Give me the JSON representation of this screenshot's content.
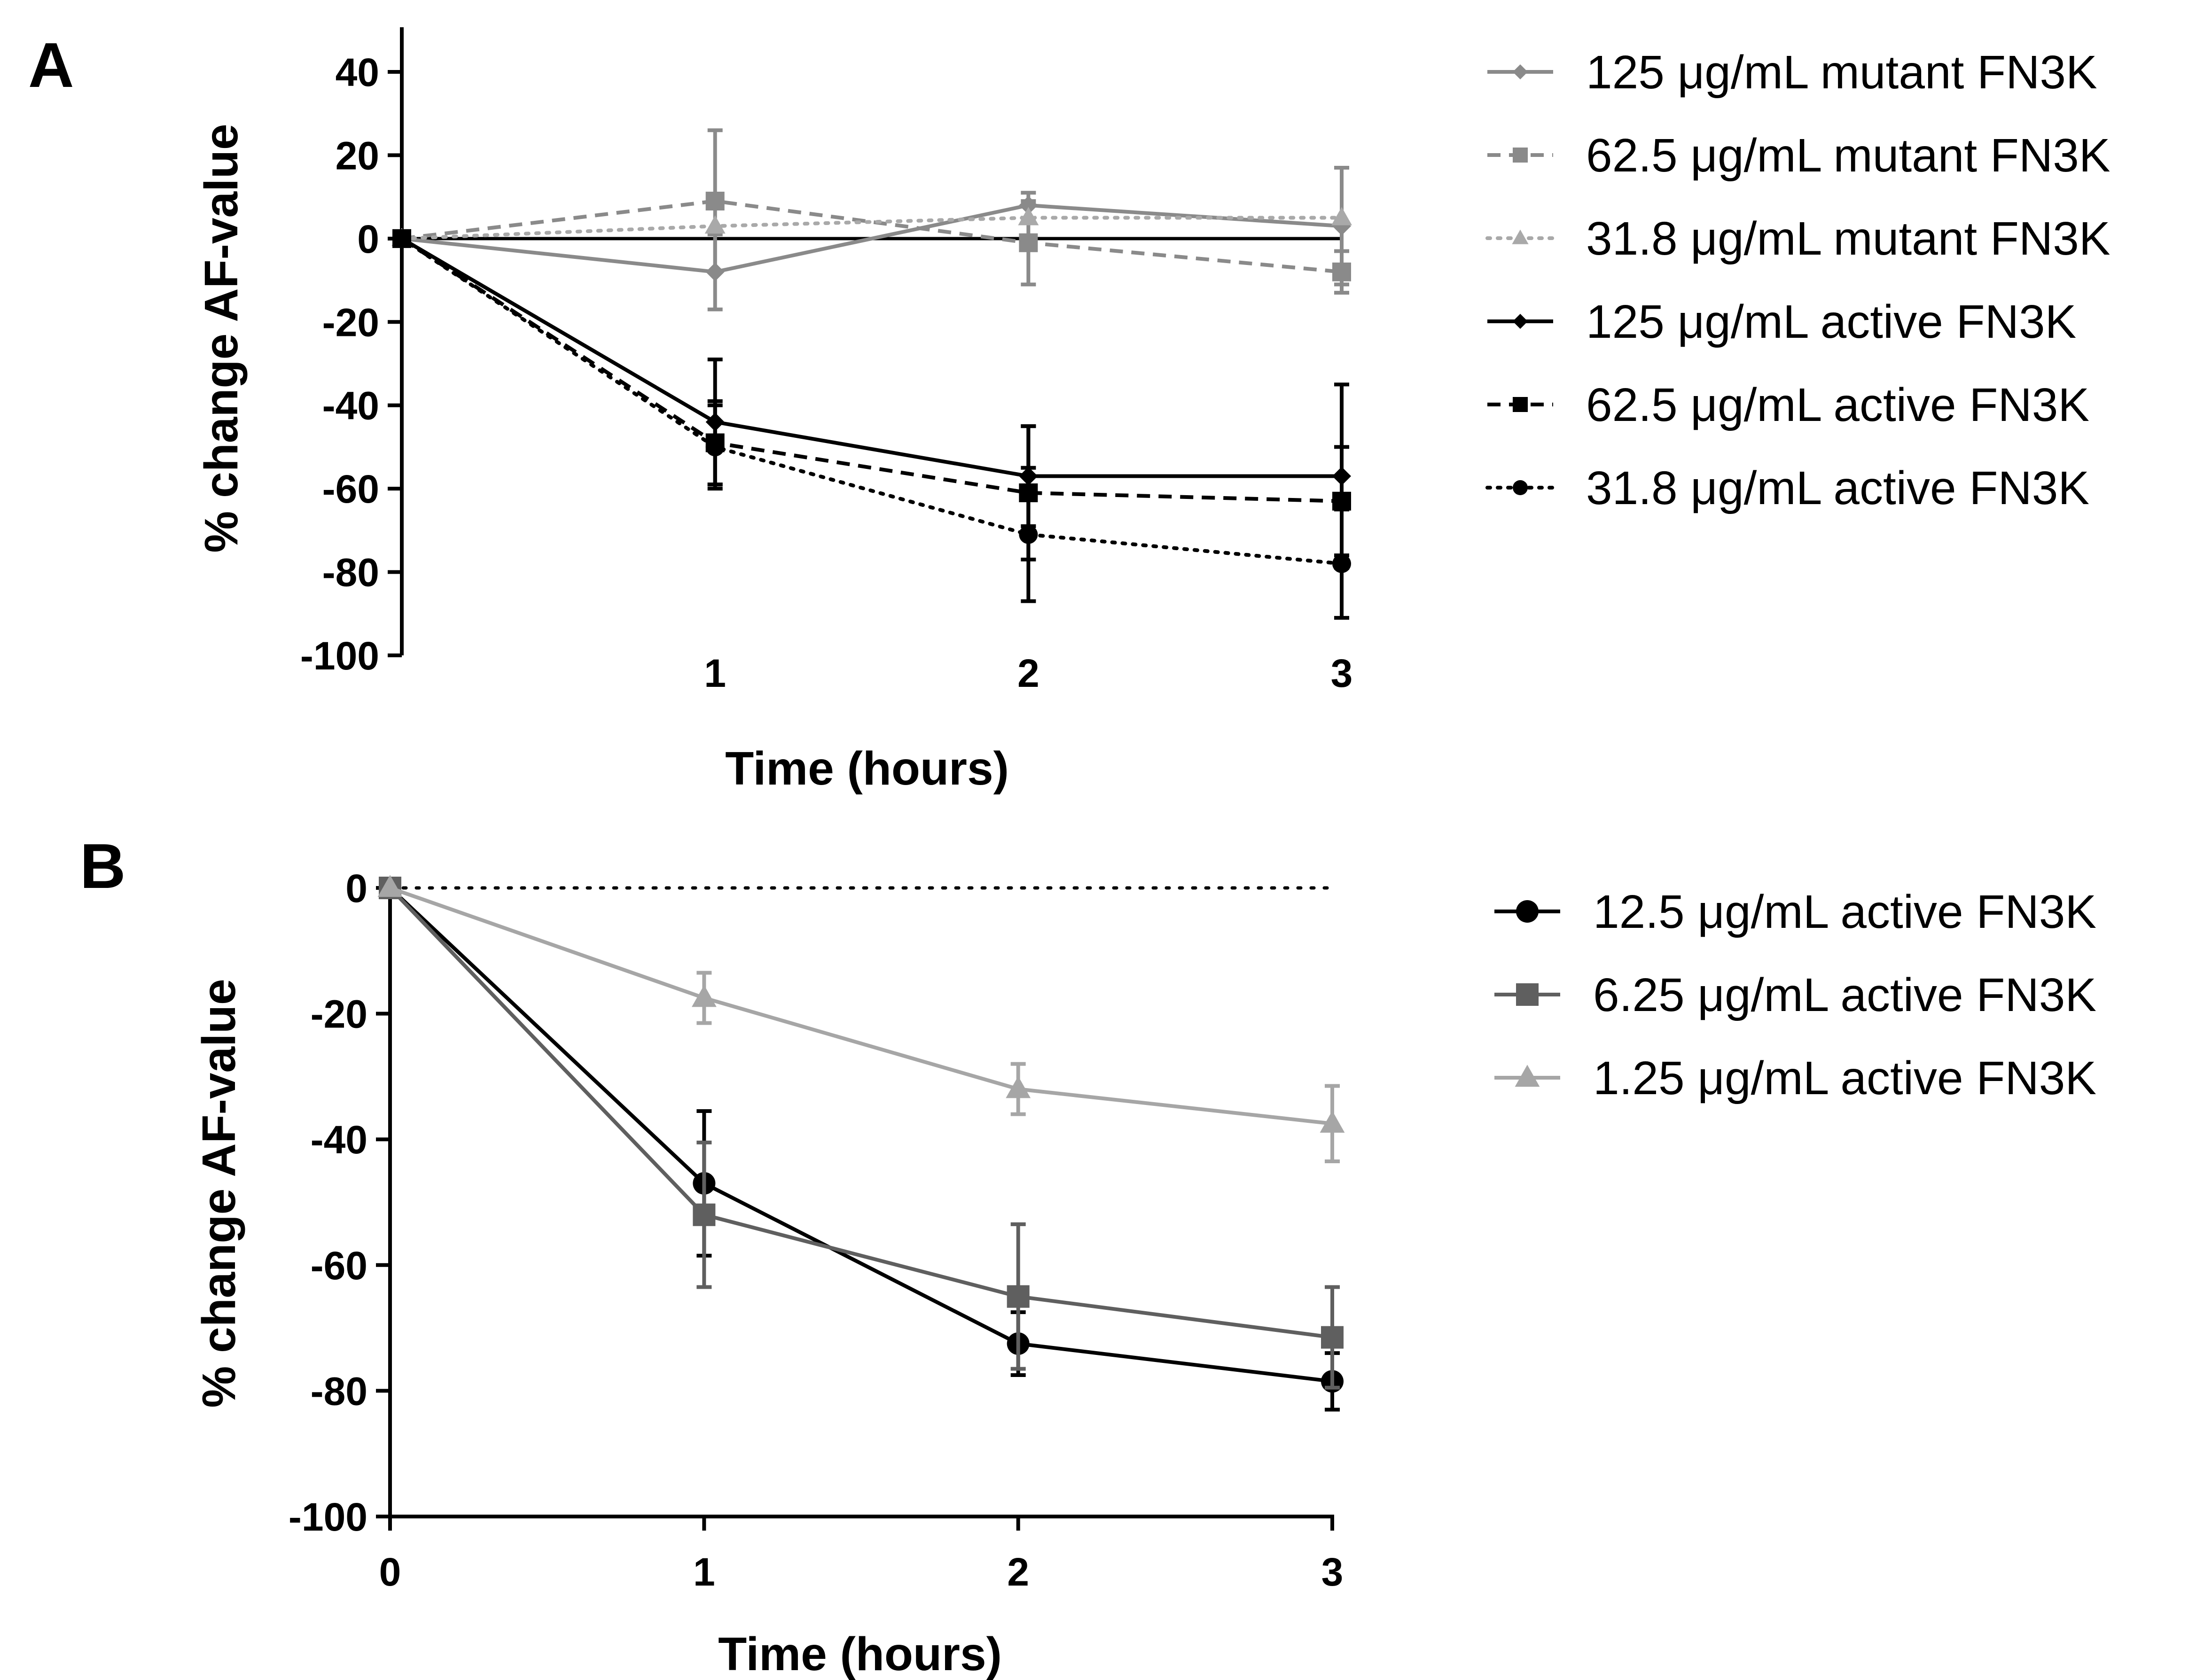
{
  "figure": {
    "panels": [
      "A",
      "B"
    ]
  },
  "chart_data": [
    {
      "panel": "A",
      "type": "line",
      "xlabel": "Time (hours)",
      "ylabel": "% change AF-value",
      "xlim": [
        0,
        3
      ],
      "ylim": [
        -100,
        40
      ],
      "x_ticks": [
        1,
        2,
        3
      ],
      "y_ticks": [
        40,
        20,
        0,
        -20,
        -40,
        -60,
        -80,
        -100
      ],
      "grid": false,
      "legend_position": "right",
      "reference_line": {
        "y": 0,
        "style": "solid"
      },
      "series": [
        {
          "name": "125 μg/mL mutant FN3K",
          "color": "#8a8a8a",
          "dash": "solid",
          "marker": "diamond",
          "x": [
            0,
            1,
            2,
            3
          ],
          "y": [
            0,
            -8,
            8,
            3
          ],
          "err": [
            0,
            9,
            3,
            14
          ]
        },
        {
          "name": "62.5 μg/mL mutant FN3K",
          "color": "#8a8a8a",
          "dash": "dashed",
          "marker": "square",
          "x": [
            0,
            1,
            2,
            3
          ],
          "y": [
            0,
            9,
            -1,
            -8
          ],
          "err": [
            0,
            17,
            10,
            5
          ]
        },
        {
          "name": "31.8 μg/mL mutant FN3K",
          "color": "#a9a9a9",
          "dash": "dotted",
          "marker": "triangle",
          "x": [
            0,
            1,
            2,
            3
          ],
          "y": [
            0,
            3,
            5,
            5
          ],
          "err": [
            0,
            0,
            0,
            0
          ]
        },
        {
          "name": "125 μg/mL active FN3K",
          "color": "#000000",
          "dash": "solid",
          "marker": "diamond",
          "x": [
            0,
            1,
            2,
            3
          ],
          "y": [
            0,
            -44,
            -57,
            -57
          ],
          "err": [
            0,
            15,
            12,
            22
          ]
        },
        {
          "name": "62.5 μg/mL active FN3K",
          "color": "#000000",
          "dash": "dashed",
          "marker": "square",
          "x": [
            0,
            1,
            2,
            3
          ],
          "y": [
            0,
            -49,
            -61,
            -63
          ],
          "err": [
            0,
            10,
            16,
            13
          ]
        },
        {
          "name": "31.8 μg/mL active FN3K",
          "color": "#000000",
          "dash": "dotted",
          "marker": "circle",
          "x": [
            0,
            1,
            2,
            3
          ],
          "y": [
            0,
            -50,
            -71,
            -78
          ],
          "err": [
            0,
            10,
            16,
            13
          ]
        }
      ]
    },
    {
      "panel": "B",
      "type": "line",
      "xlabel": "Time (hours)",
      "ylabel": "% change AF-value",
      "xlim": [
        0,
        3
      ],
      "ylim": [
        -100,
        0
      ],
      "x_ticks": [
        0,
        1,
        2,
        3
      ],
      "y_ticks": [
        0,
        -20,
        -40,
        -60,
        -80,
        -100
      ],
      "grid": false,
      "legend_position": "right",
      "reference_line": {
        "y": 0,
        "style": "dotted"
      },
      "series": [
        {
          "name": "12.5 μg/mL active FN3K",
          "color": "#000000",
          "dash": "solid",
          "marker": "circle",
          "x": [
            0,
            1,
            2,
            3
          ],
          "y": [
            0,
            -47,
            -72.5,
            -78.5
          ],
          "err": [
            0,
            11.5,
            5,
            4.5
          ]
        },
        {
          "name": "6.25 μg/mL active FN3K",
          "color": "#5f5f5f",
          "dash": "solid",
          "marker": "square",
          "x": [
            0,
            1,
            2,
            3
          ],
          "y": [
            0,
            -52,
            -65,
            -71.5
          ],
          "err": [
            0,
            11.5,
            11.5,
            8
          ]
        },
        {
          "name": "1.25 μg/mL active FN3K",
          "color": "#a6a6a6",
          "dash": "solid",
          "marker": "triangle",
          "x": [
            0,
            1,
            2,
            3
          ],
          "y": [
            0,
            -17.5,
            -32,
            -37.5
          ],
          "err": [
            0,
            4,
            4,
            6
          ]
        }
      ]
    }
  ]
}
